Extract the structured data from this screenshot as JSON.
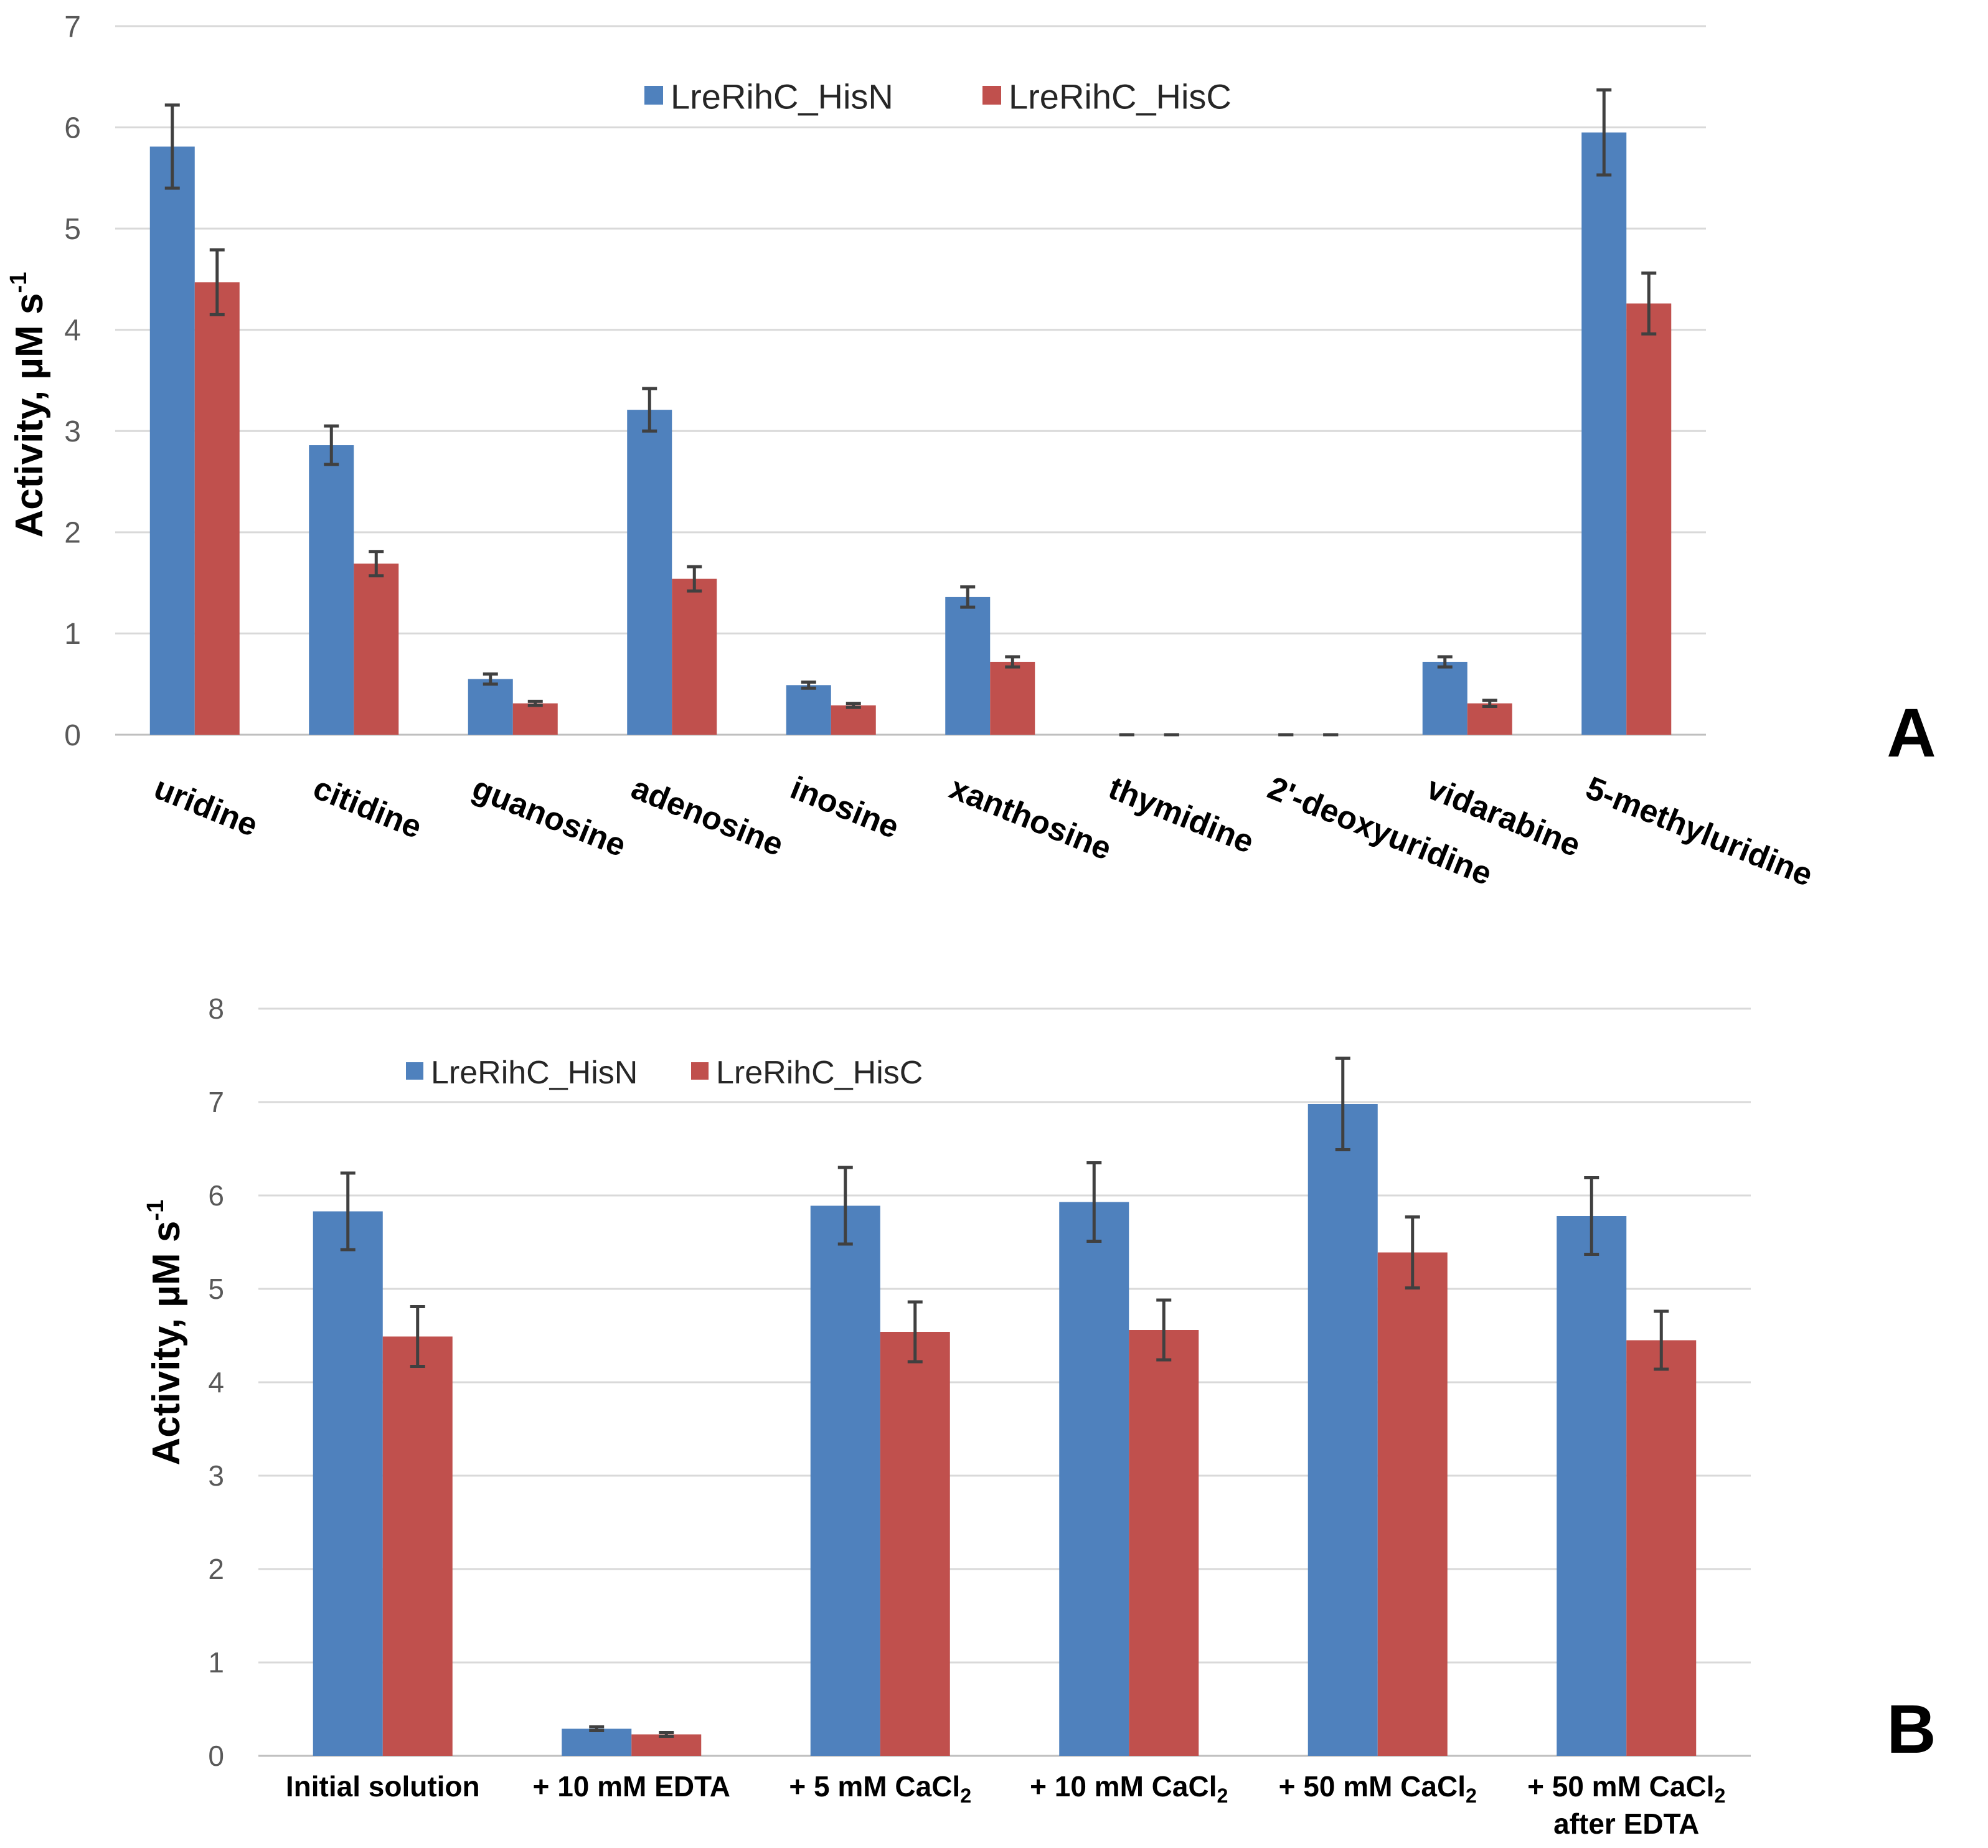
{
  "colors": {
    "series1": "#4F81BD",
    "series2": "#C0504D",
    "grid": "#D9D9D9",
    "tick": "#595959",
    "error": "#404040",
    "text": "#000000"
  },
  "chart_data": [
    {
      "type": "bar",
      "panel_label": "A",
      "ylabel": "Activity, µM s",
      "ylabel_sup": "-1",
      "ylim": [
        0,
        7
      ],
      "yticks": [
        0,
        1,
        2,
        3,
        4,
        5,
        6,
        7
      ],
      "grid": true,
      "legend_position": "top-center",
      "categories": [
        "uridine",
        "citidine",
        "guanosine",
        "adenosine",
        "inosine",
        "xanthosine",
        "thymidine",
        "2'-deoxyuridine",
        "vidarabine",
        "5-methyluridine"
      ],
      "series": [
        {
          "name": "LreRihC_HisN",
          "values": [
            5.81,
            2.86,
            0.55,
            3.21,
            0.49,
            1.36,
            0.0,
            0.0,
            0.72,
            5.95
          ],
          "errors": [
            0.41,
            0.19,
            0.05,
            0.21,
            0.03,
            0.1,
            0.0,
            0.0,
            0.05,
            0.42
          ]
        },
        {
          "name": "LreRihC_HisC",
          "values": [
            4.47,
            1.69,
            0.31,
            1.54,
            0.29,
            0.72,
            0.0,
            0.0,
            0.31,
            4.26
          ],
          "errors": [
            0.32,
            0.12,
            0.02,
            0.12,
            0.02,
            0.05,
            0.0,
            0.0,
            0.03,
            0.3
          ]
        }
      ]
    },
    {
      "type": "bar",
      "panel_label": "B",
      "ylabel": "Activity, µM s",
      "ylabel_sup": "-1",
      "ylim": [
        0,
        8
      ],
      "yticks": [
        0,
        1,
        2,
        3,
        4,
        5,
        6,
        7,
        8
      ],
      "grid": true,
      "legend_position": "top-left",
      "categories": [
        {
          "lines": [
            [
              [
                "Initial solution",
                ""
              ]
            ]
          ]
        },
        {
          "lines": [
            [
              [
                "+ 10 mM EDTA",
                ""
              ]
            ]
          ]
        },
        {
          "lines": [
            [
              [
                "+ 5 mM CaCl",
                ""
              ],
              [
                "2",
                "sub"
              ]
            ]
          ]
        },
        {
          "lines": [
            [
              [
                "+ 10 mM CaCl",
                ""
              ],
              [
                "2",
                "sub"
              ]
            ]
          ]
        },
        {
          "lines": [
            [
              [
                "+ 50 mM CaCl",
                ""
              ],
              [
                "2",
                "sub"
              ]
            ]
          ]
        },
        {
          "lines": [
            [
              [
                "+ 50 mM CaCl",
                ""
              ],
              [
                "2",
                "sub"
              ]
            ],
            [
              [
                "after EDTA",
                ""
              ]
            ]
          ]
        }
      ],
      "series": [
        {
          "name": "LreRihC_HisN",
          "values": [
            5.83,
            0.29,
            5.89,
            5.93,
            6.98,
            5.78
          ],
          "errors": [
            0.41,
            0.02,
            0.41,
            0.42,
            0.49,
            0.41
          ]
        },
        {
          "name": "LreRihC_HisC",
          "values": [
            4.49,
            0.23,
            4.54,
            4.56,
            5.39,
            4.45
          ],
          "errors": [
            0.32,
            0.02,
            0.32,
            0.32,
            0.38,
            0.31
          ]
        }
      ]
    }
  ]
}
